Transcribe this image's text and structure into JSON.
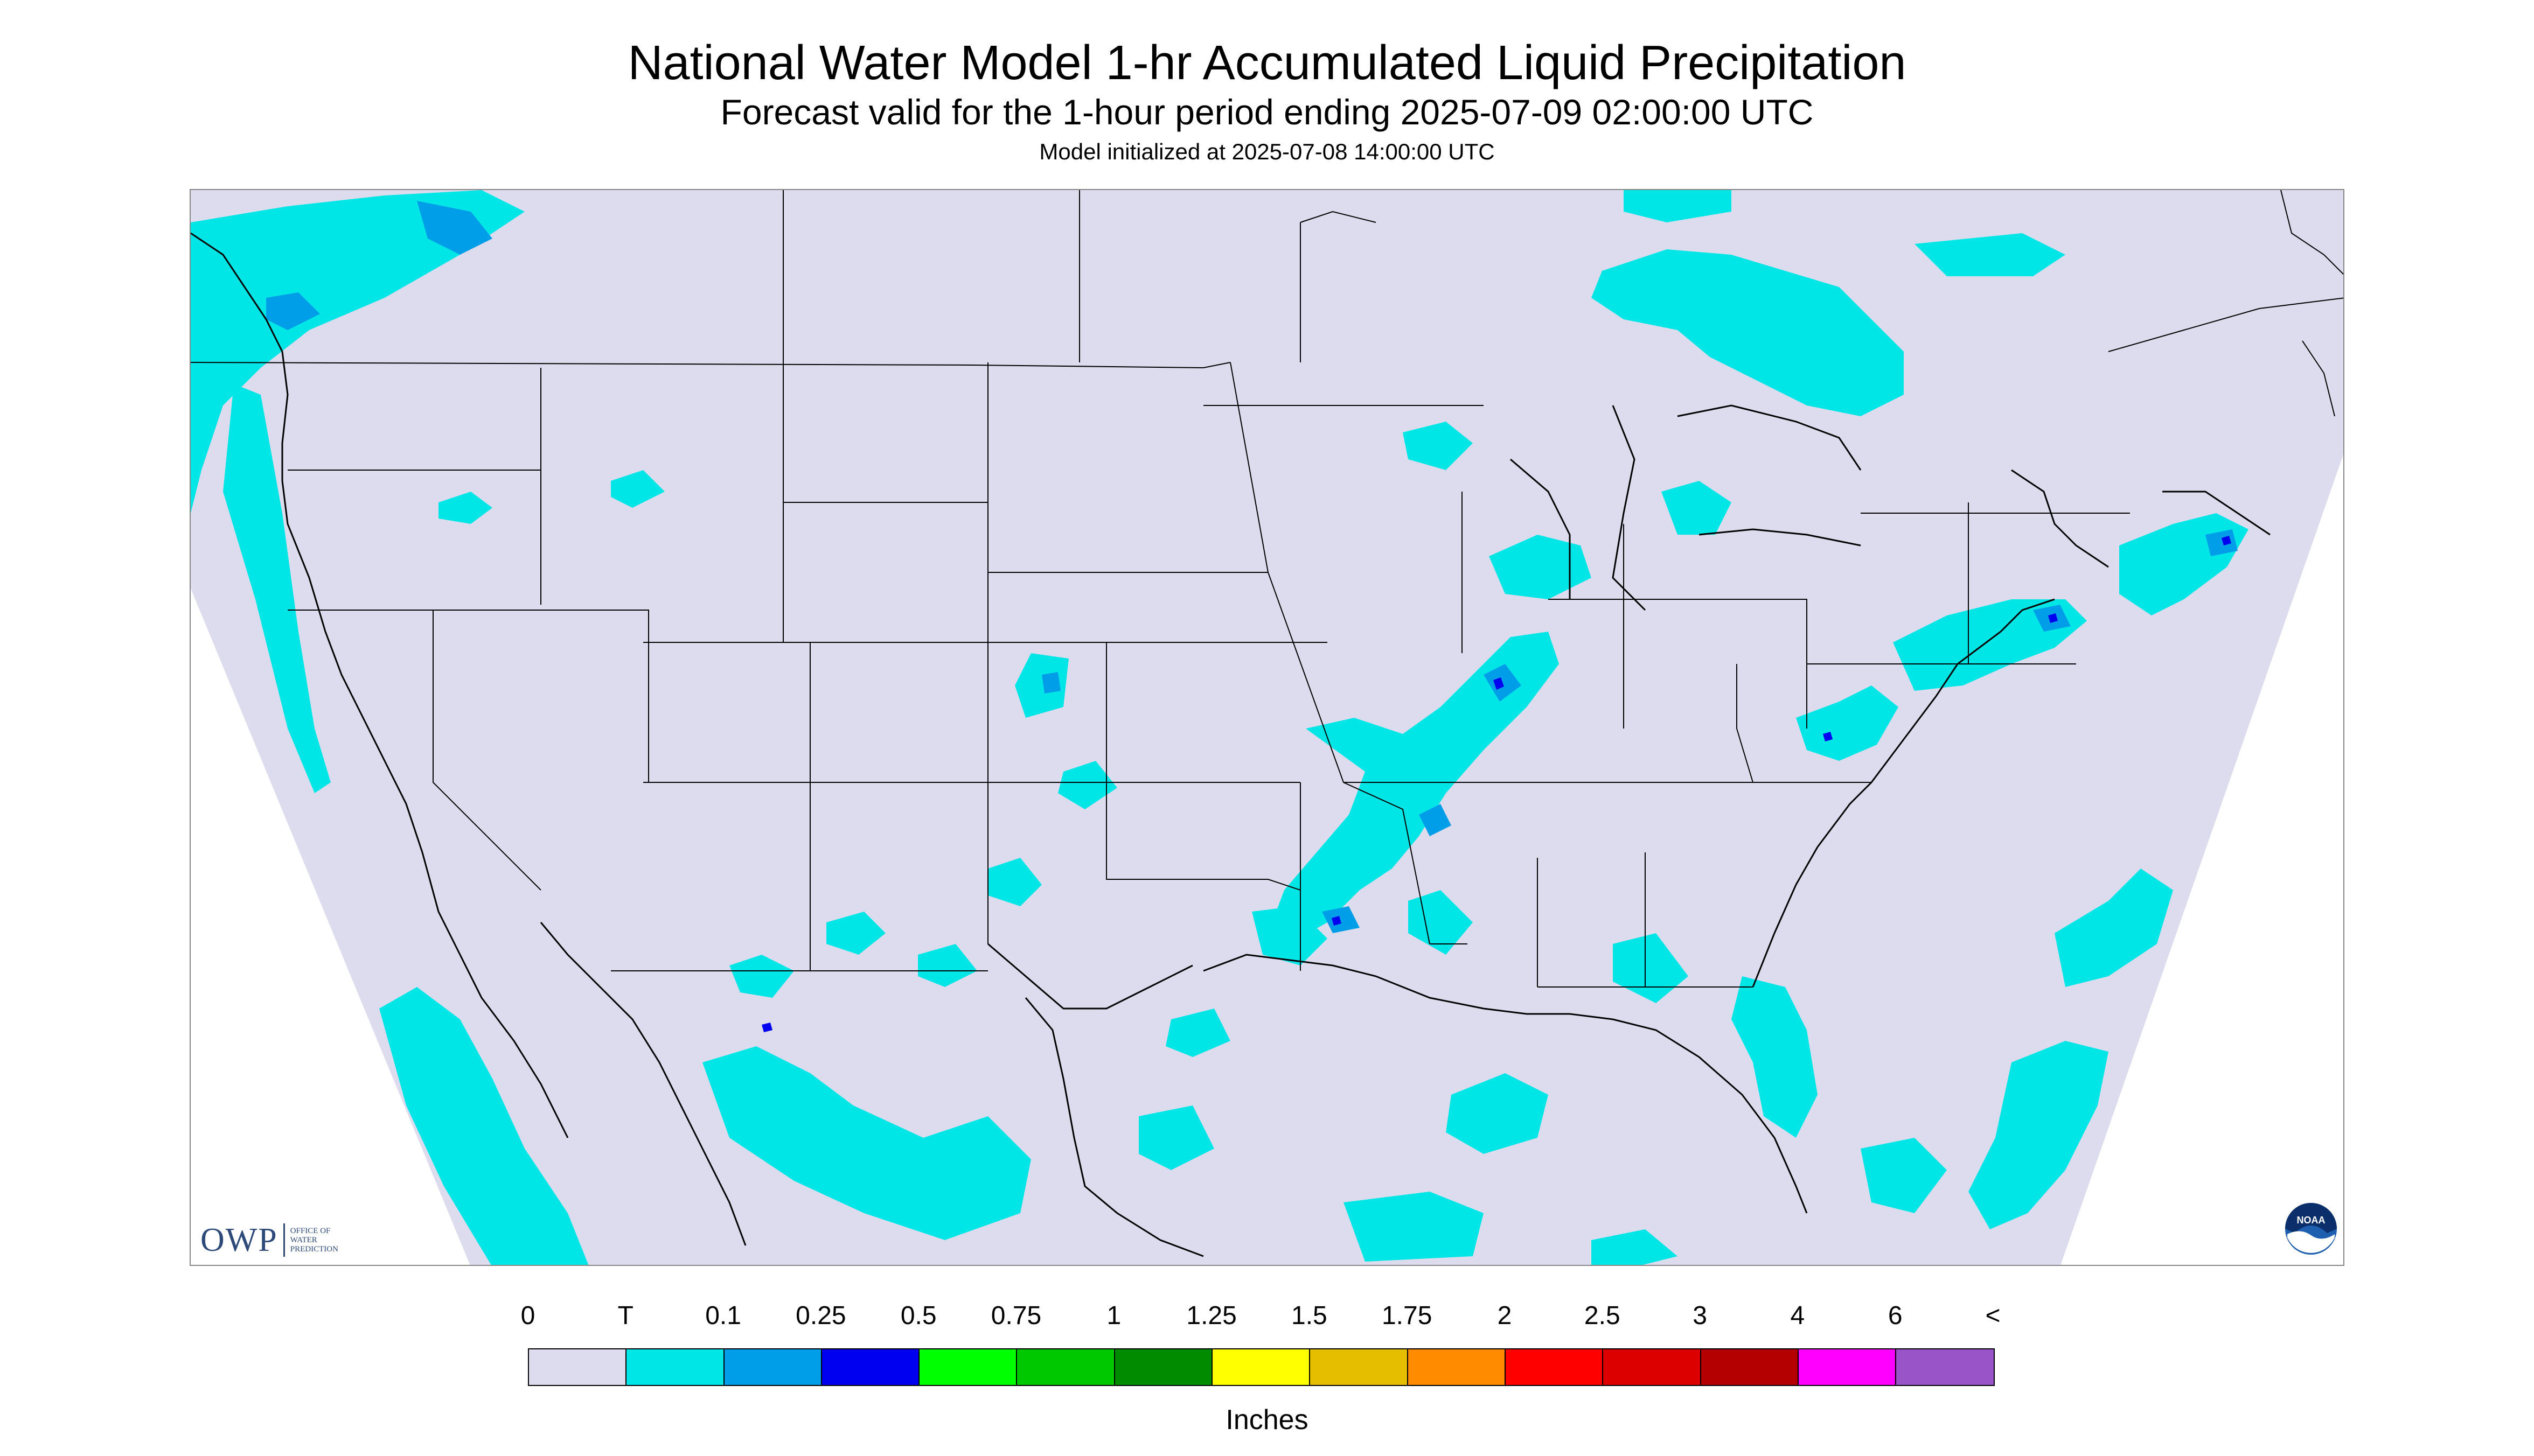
{
  "title": "National Water Model 1-hr Accumulated Liquid Precipitation",
  "subtitle": "Forecast valid for the 1-hour period ending 2025-07-09 02:00:00 UTC",
  "init": "Model initialized at 2025-07-08 14:00:00 UTC",
  "owp_logo": {
    "abbr": "OWP",
    "line1": "OFFICE OF",
    "line2": "WATER",
    "line3": "PREDICTION"
  },
  "noaa_logo": {
    "text": "NOAA"
  },
  "map": {
    "domain_fill": "#dcdcee",
    "outside_fill": "#ffffff",
    "boundary_color": "#000000"
  },
  "legend": {
    "labels": [
      "0",
      "T",
      "0.1",
      "0.25",
      "0.5",
      "0.75",
      "1",
      "1.25",
      "1.5",
      "1.75",
      "2",
      "2.5",
      "3",
      "4",
      "6",
      "<"
    ],
    "colors": [
      "#dcdcee",
      "#00e5e5",
      "#009ee8",
      "#0000f0",
      "#00ff00",
      "#00c800",
      "#008c00",
      "#ffff00",
      "#e6be00",
      "#ff8c00",
      "#ff0000",
      "#dc0000",
      "#b40000",
      "#ff00ff",
      "#9955c8"
    ],
    "units": "Inches"
  }
}
